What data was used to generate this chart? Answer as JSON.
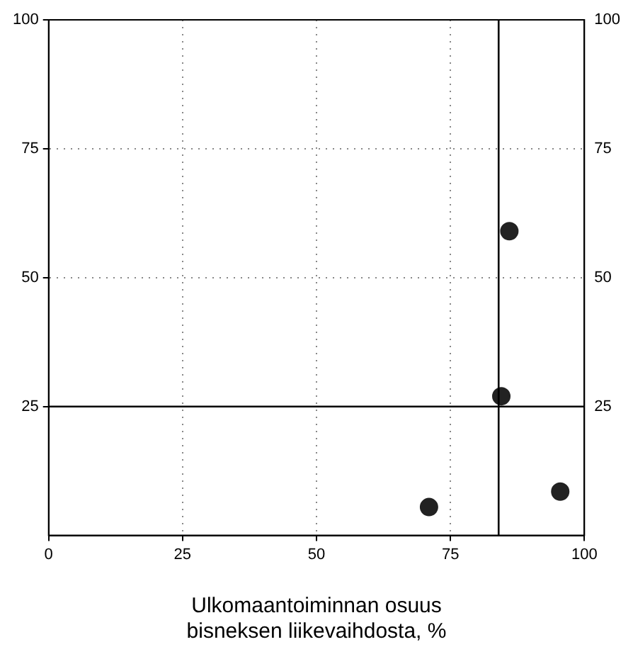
{
  "chart_data": {
    "type": "scatter",
    "xlabel": "Ulkomaantoiminnan osuus\nbisneksen liikevaihdosta, %",
    "series": [
      {
        "color": "#222222",
        "x": [
          86,
          84.5,
          71,
          95.5
        ],
        "values": [
          59,
          27,
          5.5,
          8.5
        ]
      }
    ],
    "xlim": [
      0,
      100
    ],
    "xticks": [
      0,
      25,
      50,
      75,
      100
    ],
    "ylim": [
      0,
      100
    ],
    "yticks": [
      25,
      50,
      75,
      100
    ],
    "y2lim": [
      0,
      100
    ],
    "y2ticks": [
      25,
      50,
      75,
      100
    ],
    "grid": true,
    "marker": "circle",
    "legend": false,
    "ref_lines": [
      {
        "axis": "x",
        "value": 84,
        "color": "#000000"
      },
      {
        "axis": "y",
        "value": 25,
        "color": "#000000"
      }
    ]
  }
}
